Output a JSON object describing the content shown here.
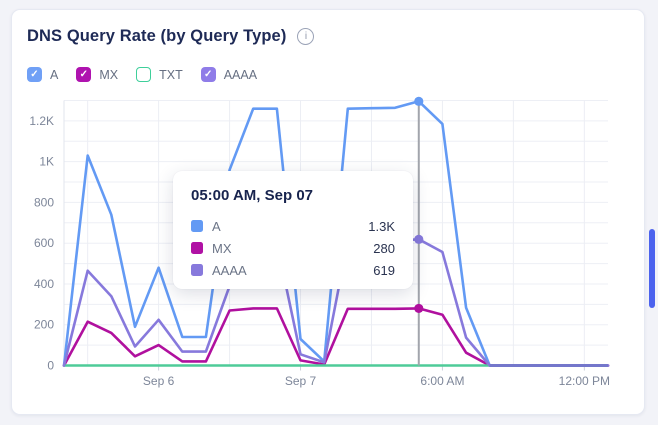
{
  "card": {
    "title": "DNS Query Rate (by Query Type)",
    "info_icon_glyph": "i"
  },
  "legend": [
    {
      "label": "A",
      "checked": true,
      "color": "#70A0F6",
      "check_glyph": "✓"
    },
    {
      "label": "MX",
      "checked": true,
      "color": "#AF13AF",
      "check_glyph": "✓"
    },
    {
      "label": "TXT",
      "checked": false,
      "color": "#3ECF9A",
      "check_glyph": ""
    },
    {
      "label": "AAAA",
      "checked": true,
      "color": "#8F7CE8",
      "check_glyph": "✓"
    }
  ],
  "tooltip": {
    "title": "05:00 AM, Sep 07",
    "rows": [
      {
        "label": "A",
        "value": "1.3K",
        "color": "#639AF4"
      },
      {
        "label": "MX",
        "value": "280",
        "color": "#B011A4"
      },
      {
        "label": "AAAA",
        "value": "619",
        "color": "#8779DC"
      }
    ]
  },
  "chart_data": {
    "type": "line",
    "title": "DNS Query Rate (by Query Type)",
    "xlabel": "",
    "ylabel": "",
    "ylim": [
      0,
      1300
    ],
    "grid": true,
    "y_ticks": [
      {
        "value": 0,
        "label": "0"
      },
      {
        "value": 200,
        "label": "200"
      },
      {
        "value": 400,
        "label": "400"
      },
      {
        "value": 600,
        "label": "600"
      },
      {
        "value": 800,
        "label": "800"
      },
      {
        "value": 1000,
        "label": "1K"
      },
      {
        "value": 1200,
        "label": "1.2K"
      }
    ],
    "minor_h_grid_step": 100,
    "grid_v_indices": [
      1,
      4,
      7,
      10,
      13,
      16,
      19,
      22
    ],
    "x_tick_labels": [
      {
        "index": 4,
        "label": "Sep 6"
      },
      {
        "index": 10,
        "label": "Sep 7"
      },
      {
        "index": 16,
        "label": "6:00 AM"
      },
      {
        "index": 22,
        "label": "12:00 PM"
      }
    ],
    "highlight": {
      "index": 15,
      "time_label": "05:00 AM, Sep 07",
      "dot_series": [
        "A",
        "MX",
        "AAAA"
      ]
    },
    "series": [
      {
        "name": "A",
        "color": "#639AF4",
        "values": [
          0,
          1030,
          740,
          190,
          480,
          140,
          140,
          960,
          1260,
          1260,
          130,
          20,
          1260,
          1262,
          1264,
          1296,
          1185,
          283,
          0,
          0,
          0,
          0,
          0,
          0
        ]
      },
      {
        "name": "MX",
        "color": "#B0109E",
        "values": [
          0,
          215,
          160,
          45,
          100,
          20,
          20,
          270,
          280,
          280,
          25,
          5,
          278,
          278,
          278,
          280,
          249,
          63,
          0,
          0,
          0,
          0,
          0,
          0
        ]
      },
      {
        "name": "TXT",
        "color": "#4ECB98",
        "end_index": 18,
        "values": [
          0,
          0,
          0,
          0,
          0,
          0,
          0,
          0,
          0,
          0,
          0,
          0,
          0,
          0,
          0,
          0,
          0,
          0,
          0,
          0,
          0,
          0,
          0,
          0
        ]
      },
      {
        "name": "AAAA",
        "color": "#8779DC",
        "values": [
          0,
          465,
          340,
          93,
          224,
          68,
          68,
          390,
          600,
          600,
          55,
          15,
          610,
          610,
          612,
          619,
          557,
          137,
          0,
          0,
          0,
          0,
          0,
          0
        ]
      }
    ],
    "overlap_segment": {
      "from_index": 18,
      "to_index": 23,
      "value": 0,
      "color": "#7477CB"
    }
  },
  "scrollbar": {
    "thumb_color": "#4C63EE"
  }
}
